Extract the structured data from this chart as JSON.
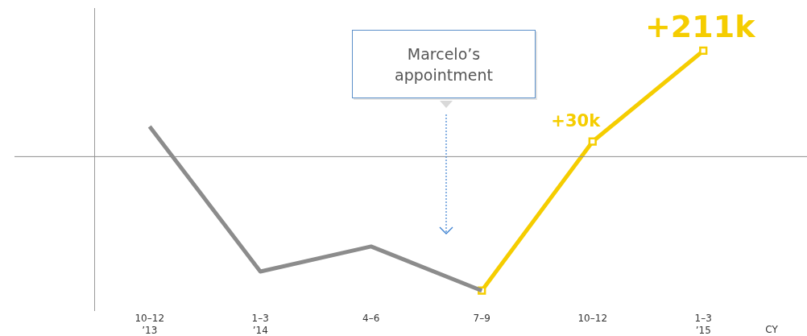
{
  "chart_data": {
    "type": "line",
    "categories": [
      "10–12\n’13",
      "1–3\n’14",
      "4–6",
      "7–9",
      "10–12",
      "1–3\n’15"
    ],
    "xlabel": "CY",
    "ylim": [
      -306,
      296
    ],
    "series": [
      {
        "color": "#8c8c8c",
        "marker": "none",
        "values": [
          60,
          -229,
          -179,
          -267,
          null,
          null
        ]
      },
      {
        "color": "#f5cd00",
        "marker": "square",
        "values": [
          null,
          null,
          null,
          -267,
          30,
          211
        ],
        "value_labels": [
          null,
          null,
          null,
          null,
          "+30k",
          "+211k"
        ]
      }
    ],
    "annotations": [
      "Marcelo’s appointment"
    ],
    "grid": false,
    "legend": false
  }
}
